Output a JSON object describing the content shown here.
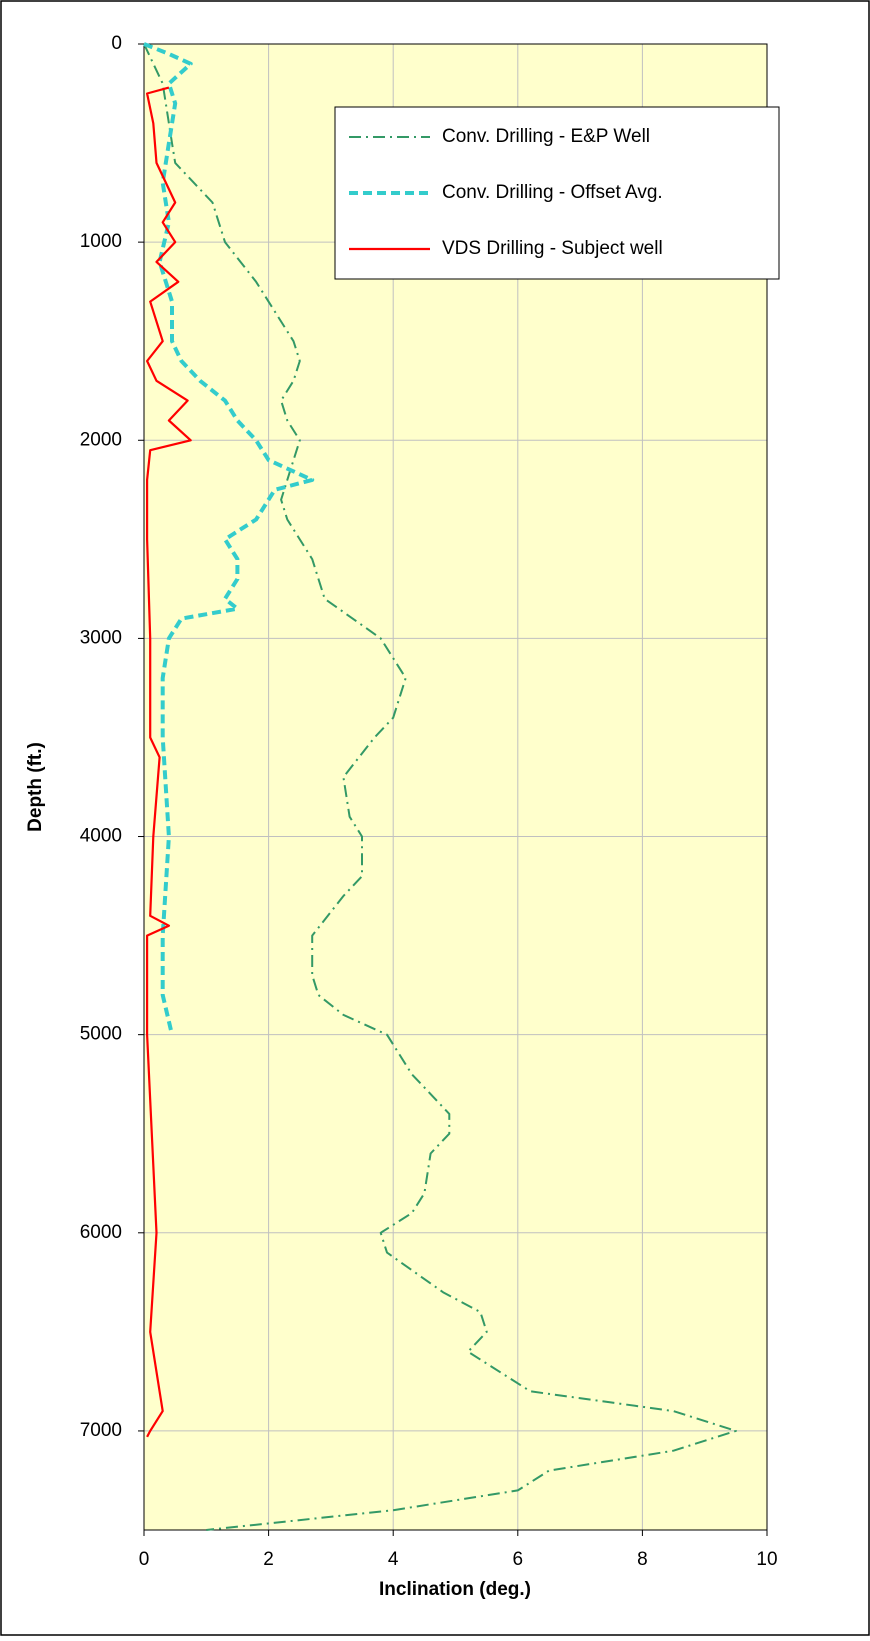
{
  "chart_data": {
    "type": "line",
    "xlabel": "Inclination (deg.)",
    "ylabel": "Depth (ft.)",
    "xlim": [
      0,
      10
    ],
    "xticks": [
      0,
      2,
      4,
      6,
      8,
      10
    ],
    "ylim": [
      0,
      7500
    ],
    "yticks": [
      0,
      1000,
      2000,
      3000,
      4000,
      5000,
      6000,
      7000
    ],
    "y_inverted": true,
    "grid": true,
    "legend": "upper right",
    "background": "#ffffcc",
    "series": [
      {
        "name": "Conv. Drilling - E&P Well",
        "color": "#339966",
        "dash": "dashdot",
        "y": [
          0,
          200,
          500,
          600,
          700,
          800,
          1000,
          1200,
          1500,
          1600,
          1700,
          1800,
          1900,
          2000,
          2100,
          2300,
          2400,
          2600,
          2800,
          3000,
          3100,
          3200,
          3400,
          3500,
          3700,
          3900,
          4000,
          4200,
          4300,
          4500,
          4700,
          4800,
          4900,
          5000,
          5200,
          5400,
          5500,
          5600,
          5800,
          5900,
          6000,
          6100,
          6300,
          6400,
          6500,
          6600,
          6800,
          6900,
          7000,
          7100,
          7200,
          7300,
          7400,
          7500
        ],
        "x": [
          0,
          0.3,
          0.45,
          0.5,
          0.8,
          1.1,
          1.3,
          1.8,
          2.4,
          2.5,
          2.4,
          2.2,
          2.3,
          2.5,
          2.4,
          2.2,
          2.3,
          2.7,
          2.9,
          3.8,
          4.0,
          4.2,
          4.0,
          3.7,
          3.2,
          3.3,
          3.5,
          3.5,
          3.2,
          2.7,
          2.7,
          2.8,
          3.2,
          3.9,
          4.3,
          4.9,
          4.9,
          4.6,
          4.5,
          4.3,
          3.8,
          3.9,
          4.8,
          5.4,
          5.5,
          5.2,
          6.2,
          8.5,
          9.5,
          8.5,
          6.5,
          6.0,
          4.0,
          1.0
        ]
      },
      {
        "name": "Conv. Drilling - Offset Avg.",
        "color": "#33cccc",
        "dash": "dash",
        "y": [
          0,
          50,
          100,
          200,
          300,
          500,
          700,
          900,
          1100,
          1300,
          1500,
          1600,
          1700,
          1800,
          1900,
          2000,
          2100,
          2200,
          2250,
          2400,
          2500,
          2600,
          2700,
          2800,
          2850,
          2900,
          3000,
          3200,
          3500,
          4000,
          4500,
          4800,
          5000
        ],
        "x": [
          0,
          0.4,
          0.75,
          0.4,
          0.5,
          0.4,
          0.3,
          0.4,
          0.25,
          0.45,
          0.45,
          0.6,
          0.9,
          1.3,
          1.5,
          1.8,
          2.0,
          2.7,
          2.1,
          1.8,
          1.3,
          1.5,
          1.5,
          1.3,
          1.5,
          0.6,
          0.4,
          0.3,
          0.3,
          0.4,
          0.3,
          0.3,
          0.45
        ]
      },
      {
        "name": "VDS Drilling - Subject well",
        "color": "#ff0000",
        "dash": "solid",
        "y": [
          220,
          250,
          400,
          600,
          800,
          900,
          1000,
          1100,
          1200,
          1300,
          1500,
          1600,
          1700,
          1800,
          1900,
          2000,
          2050,
          2200,
          2500,
          3000,
          3500,
          3600,
          4000,
          4400,
          4450,
          4500,
          5000,
          6000,
          6500,
          6900,
          7000,
          7030
        ],
        "x": [
          0.4,
          0.05,
          0.15,
          0.2,
          0.5,
          0.3,
          0.5,
          0.2,
          0.55,
          0.1,
          0.3,
          0.05,
          0.2,
          0.7,
          0.4,
          0.75,
          0.1,
          0.05,
          0.05,
          0.1,
          0.1,
          0.25,
          0.15,
          0.1,
          0.4,
          0.05,
          0.05,
          0.2,
          0.1,
          0.3,
          0.1,
          0.05
        ]
      }
    ]
  }
}
